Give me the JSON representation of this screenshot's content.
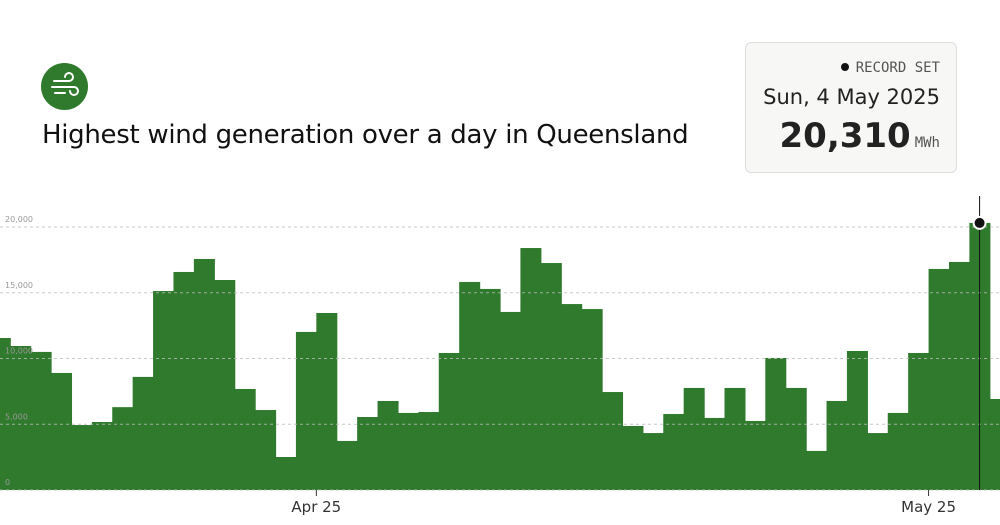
{
  "chart_data": {
    "type": "step-area",
    "title": "Highest wind generation over a day in Queensland",
    "record": {
      "label": "RECORD SET",
      "date": "Sun, 4 May 2025",
      "value": "20,310",
      "unit": "MWh",
      "index": 48
    },
    "x": [
      0,
      1,
      2,
      3,
      4,
      5,
      6,
      7,
      8,
      9,
      10,
      11,
      12,
      13,
      14,
      15,
      16,
      17,
      18,
      19,
      20,
      21,
      22,
      23,
      24,
      25,
      26,
      27,
      28,
      29,
      30,
      31,
      32,
      33,
      34,
      35,
      36,
      37,
      38,
      39,
      40,
      41,
      42,
      43,
      44,
      45,
      46,
      47,
      48,
      49
    ],
    "values": [
      11560,
      10950,
      10500,
      8900,
      4940,
      5170,
      6300,
      8600,
      15130,
      16580,
      17570,
      15970,
      7680,
      6080,
      2510,
      12020,
      13460,
      3730,
      5550,
      6770,
      5860,
      5930,
      10420,
      15820,
      15290,
      13540,
      18400,
      17260,
      14140,
      13760,
      7450,
      4870,
      4330,
      5780,
      7760,
      5480,
      7760,
      5250,
      10040,
      7760,
      2970,
      6770,
      10570,
      4330,
      5860,
      10420,
      16810,
      17340,
      20310,
      6920
    ],
    "color": "#2f7a2c",
    "xlim": [
      0,
      49
    ],
    "xticks": [
      {
        "value": 15.5,
        "label": "Apr 25"
      },
      {
        "value": 45.5,
        "label": "May 25"
      }
    ],
    "ylim": [
      0,
      20000
    ],
    "yticks": [
      {
        "value": 0,
        "label": "0"
      },
      {
        "value": 5000,
        "label": "5,000"
      },
      {
        "value": 10000,
        "label": "10,000"
      },
      {
        "value": 15000,
        "label": "15,000"
      },
      {
        "value": 20000,
        "label": "20,000"
      }
    ],
    "grid": true
  }
}
